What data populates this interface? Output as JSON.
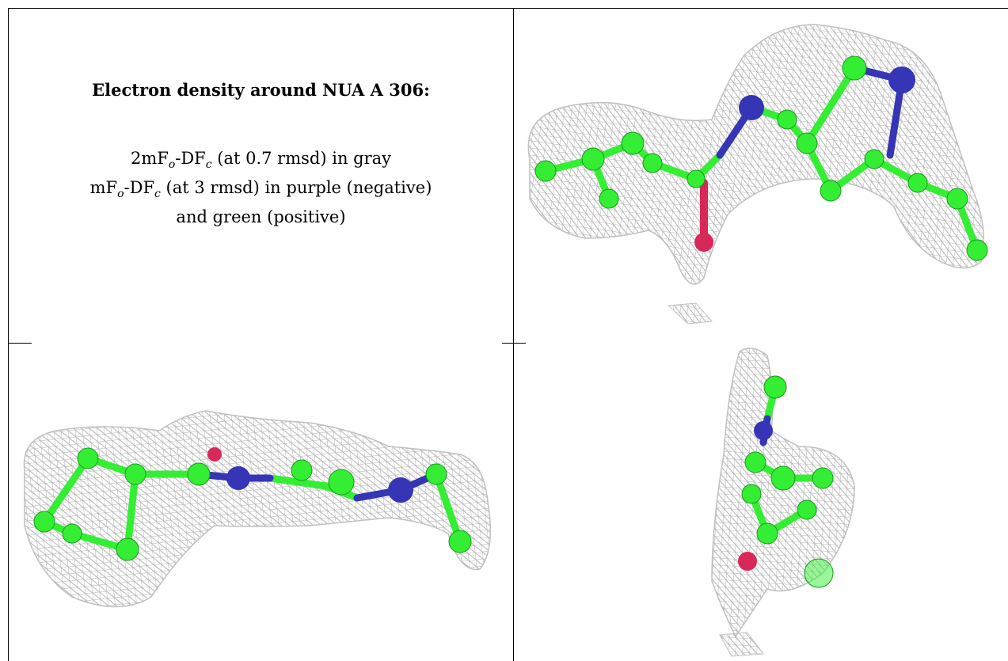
{
  "caption": {
    "title": "Electron density around NUA A 306:",
    "line1": {
      "pre": "2mF",
      "sub1": "o",
      "mid": "-DF",
      "sub2": "c",
      "post": " (at 0.7 rmsd) in gray"
    },
    "line2": {
      "pre": "mF",
      "sub1": "o",
      "mid": "-DF",
      "sub2": "c",
      "post": " (at 3 rmsd) in purple (negative)"
    },
    "line3": "and green (positive)"
  },
  "colors": {
    "mesh": "#b4b4b4",
    "carbon": "#33ee33",
    "nitrogen": "#3535b5",
    "oxygen": "#d8285a",
    "border": "#000000"
  },
  "panels": [
    "view-top-right",
    "view-bottom-left",
    "view-bottom-right"
  ]
}
